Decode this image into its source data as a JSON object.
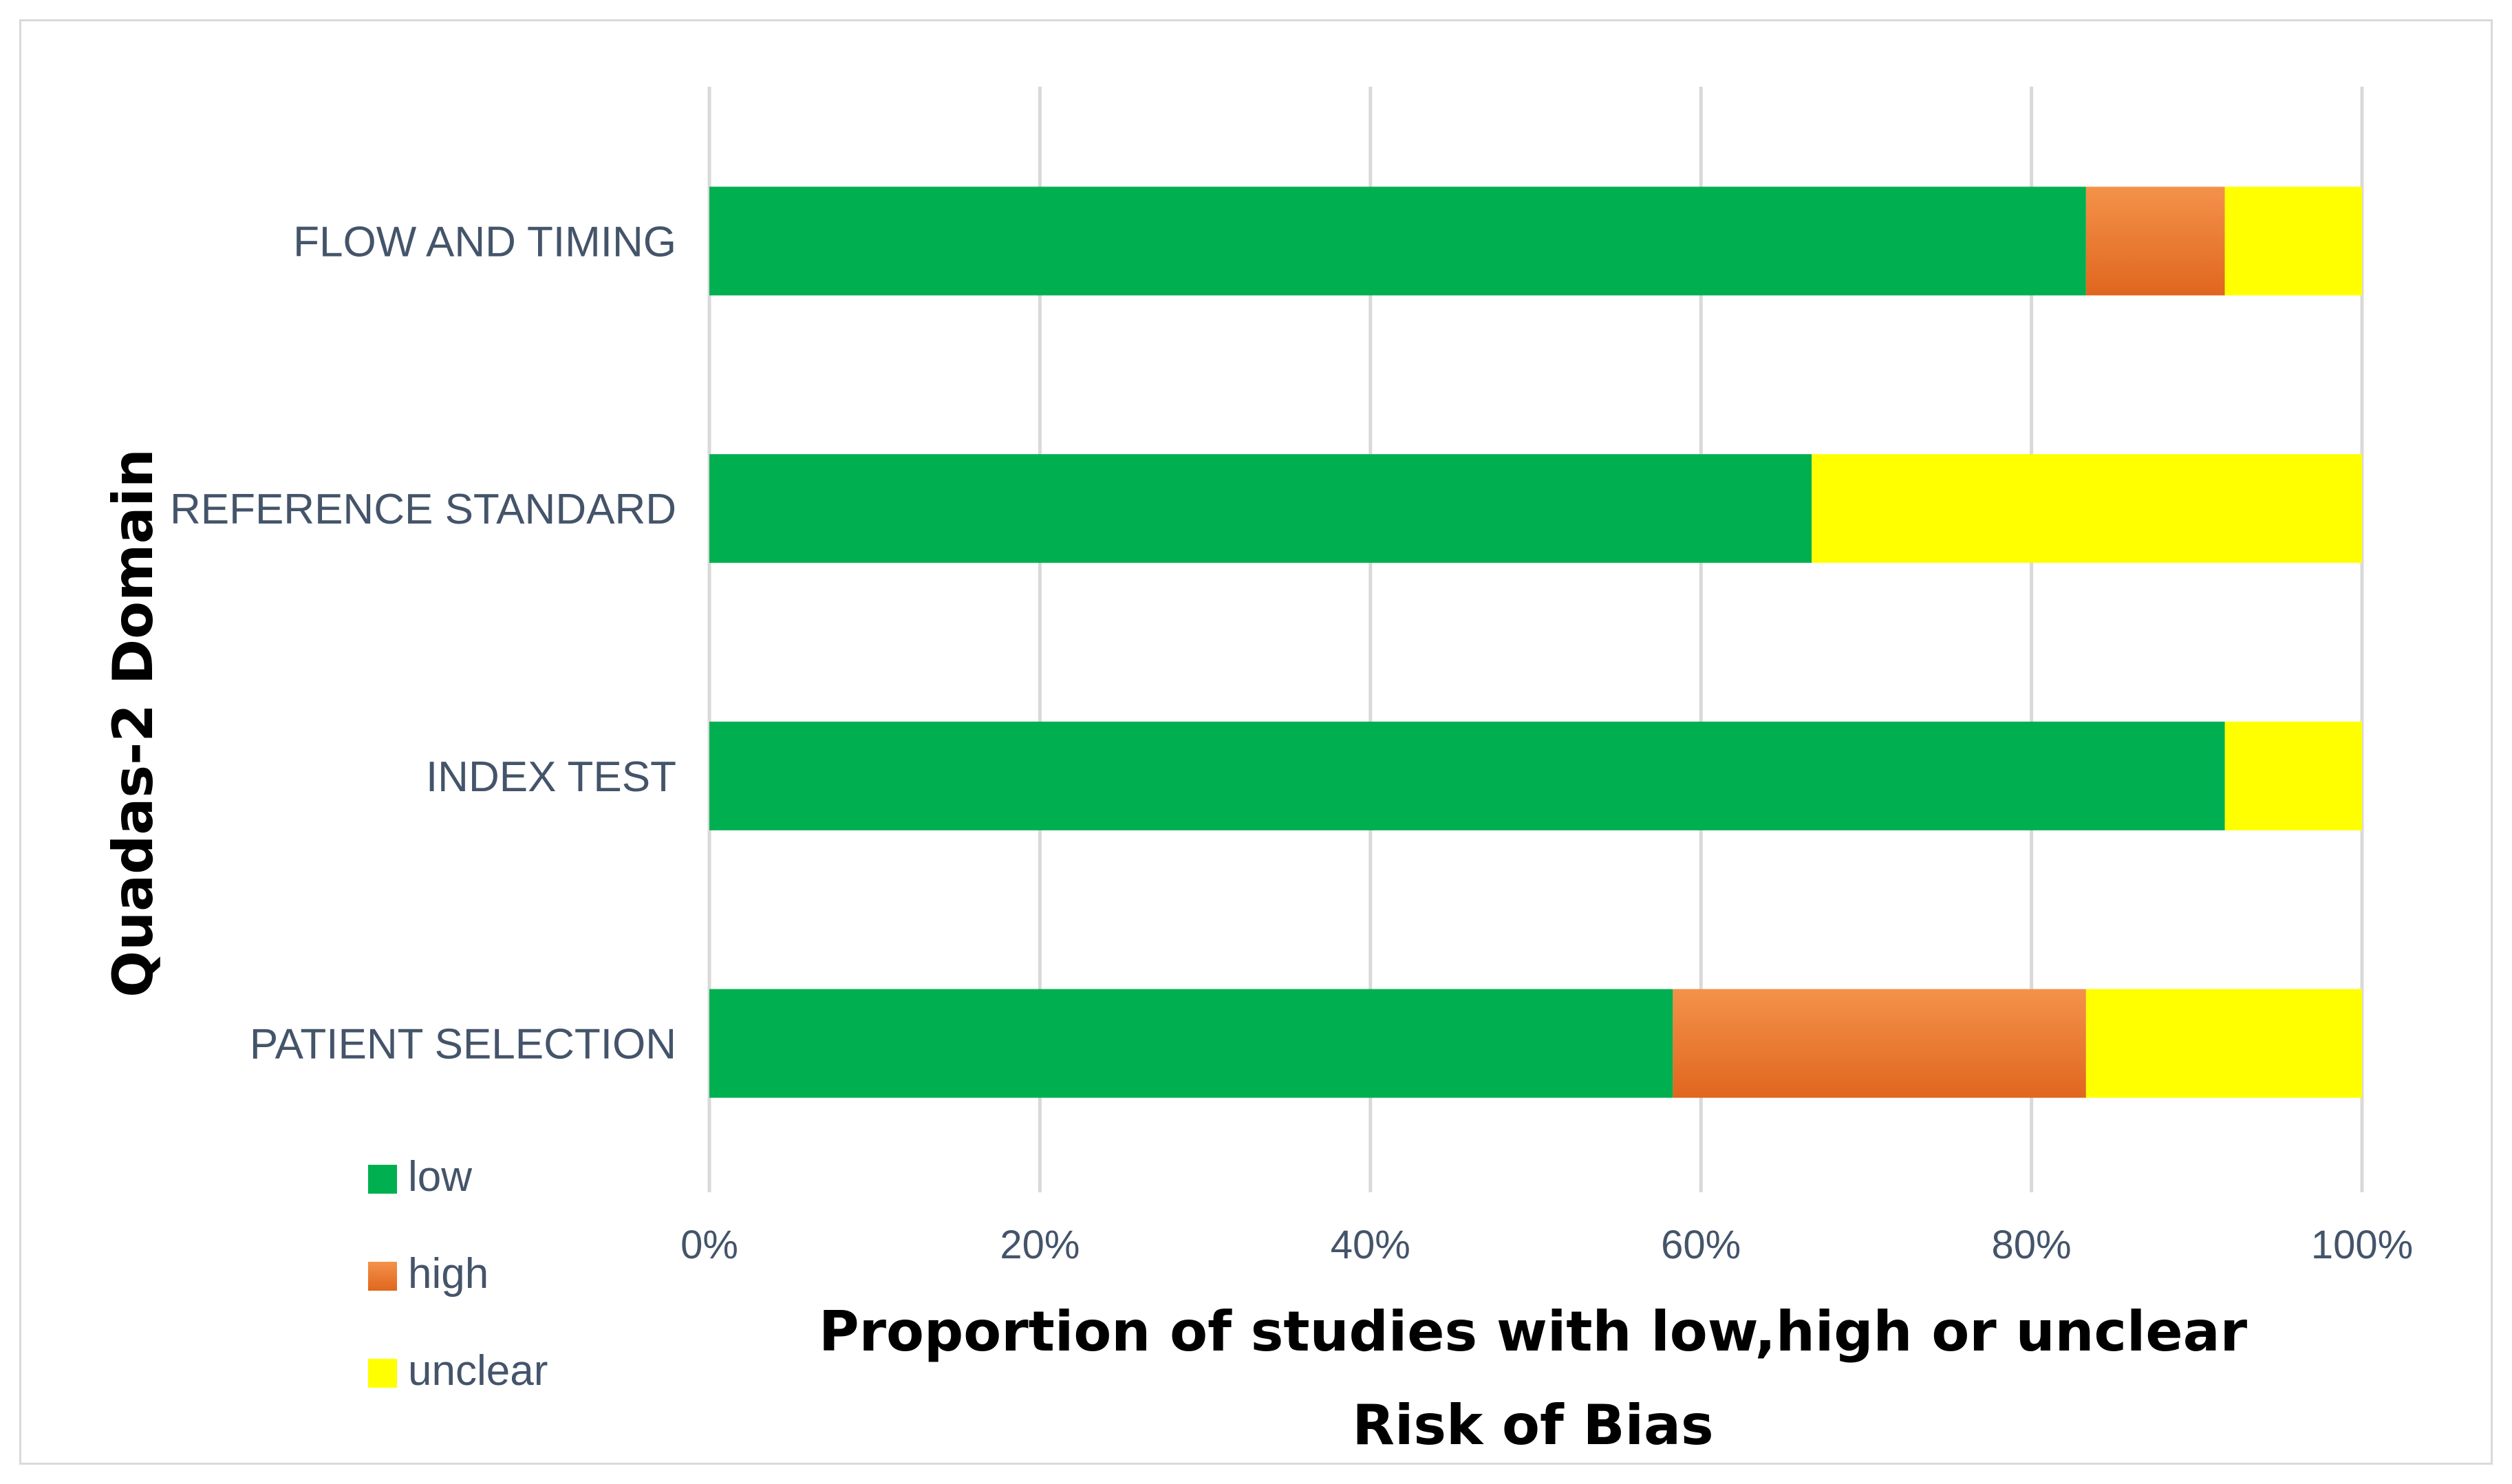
{
  "chart_data": {
    "type": "bar",
    "orientation": "horizontal",
    "stacked": true,
    "categories": [
      "FLOW AND TIMING",
      "REFERENCE STANDARD",
      "INDEX TEST",
      "PATIENT SELECTION"
    ],
    "series": [
      {
        "name": "low",
        "color": "#00b050",
        "values": [
          83.3,
          66.7,
          91.7,
          58.3
        ]
      },
      {
        "name": "high",
        "color": "#ed7d31",
        "values": [
          8.4,
          0,
          0,
          25.0
        ]
      },
      {
        "name": "unclear",
        "color": "#ffff00",
        "values": [
          8.3,
          33.3,
          8.3,
          16.7
        ]
      }
    ],
    "x_ticks": [
      "0%",
      "20%",
      "40%",
      "60%",
      "80%",
      "100%"
    ],
    "xlim": [
      0,
      100
    ],
    "xlabel_lines": [
      "Proportion of studies with low,high or unclear",
      "Risk of Bias"
    ],
    "ylabel": "Quadas-2 Domain",
    "grid": true,
    "legend_position": "bottom-left"
  }
}
